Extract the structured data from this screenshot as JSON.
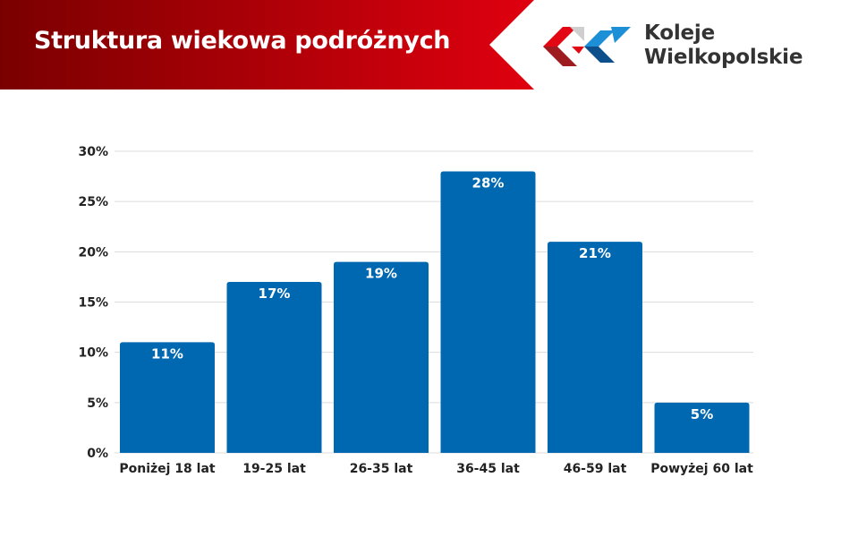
{
  "header": {
    "title": "Struktura wiekowa podróżnych",
    "brand_line1": "Koleje",
    "brand_line2": "Wielkopolskie",
    "logo_icon": "koleje-wielkopolskie-logo"
  },
  "colors": {
    "header_dark": "#7a0000",
    "header_light": "#e0000f",
    "bar": "#0068b0",
    "grid": "#dcdcdc",
    "logo_red": "#e30613",
    "logo_darkred": "#9e1b20",
    "logo_blue": "#1d8fd6",
    "logo_darkblue": "#0c4f8a",
    "logo_grey": "#cfcfcf"
  },
  "chart_data": {
    "type": "bar",
    "title": "",
    "xlabel": "",
    "ylabel": "",
    "categories": [
      "Poniżej 18 lat",
      "19-25 lat",
      "26-35 lat",
      "36-45 lat",
      "46-59 lat",
      "Powyżej 60 lat"
    ],
    "values": [
      11,
      17,
      19,
      28,
      21,
      5
    ],
    "data_labels": [
      "11%",
      "17%",
      "19%",
      "28%",
      "21%",
      "5%"
    ],
    "ylim": [
      0,
      30
    ],
    "yticks": [
      0,
      5,
      10,
      15,
      20,
      25,
      30
    ],
    "ytick_labels": [
      "0%",
      "5%",
      "10%",
      "15%",
      "20%",
      "25%",
      "30%"
    ],
    "grid": true,
    "legend": "none"
  }
}
